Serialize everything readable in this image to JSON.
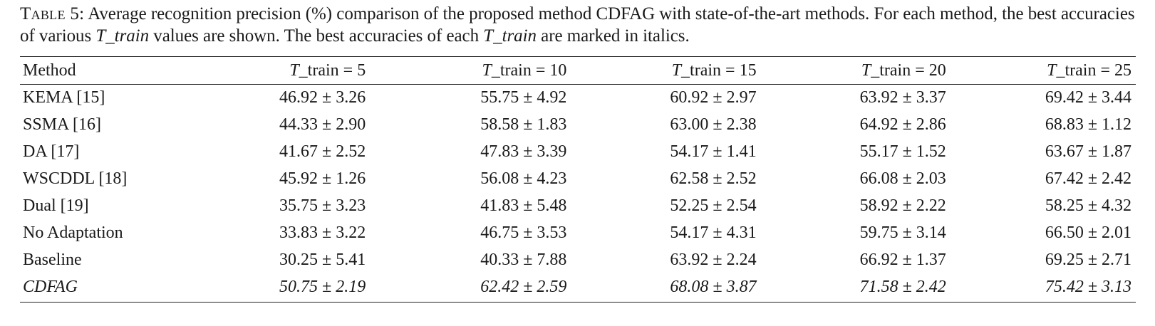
{
  "caption": {
    "label": "Table 5:",
    "text_1": " Average recognition precision (%) comparison of the proposed method CDFAG with state-of-the-art methods. For each method, the best accuracies of various ",
    "em_1": "T_train",
    "text_2": " values are shown. The best accuracies of each ",
    "em_2": "T_train",
    "text_3": " are marked in italics."
  },
  "table": {
    "header": {
      "method": "Method",
      "t_var": "T",
      "columns": [
        "_train = 5",
        "_train = 10",
        "_train = 15",
        "_train = 20",
        "_train = 25"
      ]
    },
    "rows": [
      {
        "method": "KEMA [15]",
        "values": [
          "46.92 ± 3.26",
          "55.75 ± 4.92",
          "60.92 ± 2.97",
          "63.92 ± 3.37",
          "69.42 ± 3.44"
        ],
        "italic": false
      },
      {
        "method": "SSMA [16]",
        "values": [
          "44.33 ± 2.90",
          "58.58 ± 1.83",
          "63.00 ± 2.38",
          "64.92 ± 2.86",
          "68.83 ± 1.12"
        ],
        "italic": false
      },
      {
        "method": "DA [17]",
        "values": [
          "41.67 ± 2.52",
          "47.83 ± 3.39",
          "54.17 ± 1.41",
          "55.17 ± 1.52",
          "63.67 ± 1.87"
        ],
        "italic": false
      },
      {
        "method": "WSCDDL [18]",
        "values": [
          "45.92 ± 1.26",
          "56.08 ± 4.23",
          "62.58 ± 2.52",
          "66.08 ± 2.03",
          "67.42 ± 2.42"
        ],
        "italic": false
      },
      {
        "method": "Dual [19]",
        "values": [
          "35.75 ± 3.23",
          "41.83 ± 5.48",
          "52.25 ± 2.54",
          "58.92 ± 2.22",
          "58.25 ± 4.32"
        ],
        "italic": false
      },
      {
        "method": "No Adaptation",
        "values": [
          "33.83 ± 3.22",
          "46.75 ± 3.53",
          "54.17 ± 4.31",
          "59.75 ± 3.14",
          "66.50 ± 2.01"
        ],
        "italic": false
      },
      {
        "method": "Baseline",
        "values": [
          "30.25 ± 5.41",
          "40.33 ± 7.88",
          "63.92 ± 2.24",
          "66.92 ± 1.37",
          "69.25 ± 2.71"
        ],
        "italic": false
      },
      {
        "method": "CDFAG",
        "values": [
          "50.75 ± 2.19",
          "62.42 ± 2.59",
          "68.08 ± 3.87",
          "71.58 ± 2.42",
          "75.42 ± 3.13"
        ],
        "italic": true
      }
    ]
  }
}
